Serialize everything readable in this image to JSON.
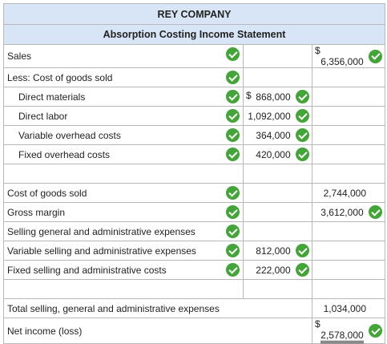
{
  "company": "REY COMPANY",
  "statement_title": "Absorption Costing Income Statement",
  "rows": {
    "sales": {
      "label": "Sales",
      "currency": "$",
      "total": "6,356,000"
    },
    "less_cogs": {
      "label": "Less: Cost of goods sold"
    },
    "direct_materials": {
      "label": "Direct materials",
      "currency": "$",
      "amount": "868,000"
    },
    "direct_labor": {
      "label": "Direct labor",
      "amount": "1,092,000"
    },
    "variable_overhead": {
      "label": "Variable overhead costs",
      "amount": "364,000"
    },
    "fixed_overhead": {
      "label": "Fixed overhead costs",
      "amount": "420,000"
    },
    "cogs": {
      "label": "Cost of goods sold",
      "total": "2,744,000"
    },
    "gross_margin": {
      "label": "Gross margin",
      "total": "3,612,000"
    },
    "sga": {
      "label": "Selling general and administrative expenses"
    },
    "variable_sga": {
      "label": "Variable selling and administrative expenses",
      "amount": "812,000"
    },
    "fixed_sga": {
      "label": "Fixed selling and administrative costs",
      "amount": "222,000"
    },
    "total_sga": {
      "label": "Total selling, general and administrative expenses",
      "total": "1,034,000"
    },
    "net_income": {
      "label": "Net income (loss)",
      "currency": "$",
      "total": "2,578,000"
    }
  },
  "check_icon": "check-circle-icon",
  "colors": {
    "header_bg": "#d7e5f6",
    "check": "#44a339",
    "border": "#b8b8b8"
  }
}
